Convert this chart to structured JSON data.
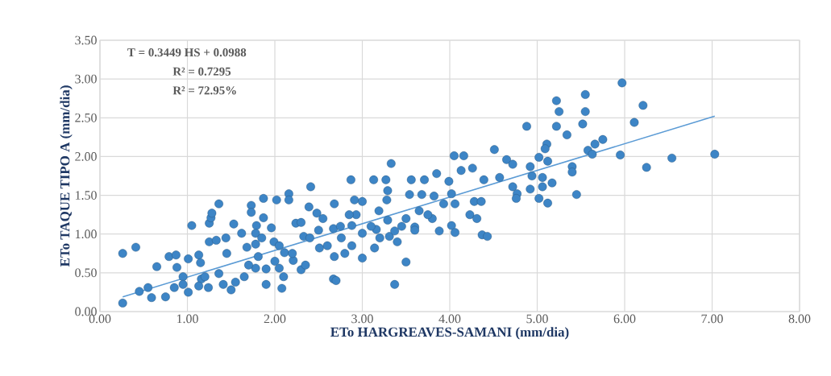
{
  "chart_data": {
    "type": "scatter",
    "xlabel": "ETo HARGREAVES-SAMANI (mm/dia)",
    "ylabel": "ETo TAQUE TIPO A (mm/dia)",
    "annotations": [
      "T = 0.3449 HS + 0.0988",
      "R² = 0.7295",
      "R² = 72.95%"
    ],
    "xlim": [
      0,
      8
    ],
    "ylim": [
      0,
      3.5
    ],
    "xticks": [
      {
        "value": 0,
        "label": "0.00"
      },
      {
        "value": 1,
        "label": "1.00"
      },
      {
        "value": 2,
        "label": "2.00"
      },
      {
        "value": 3,
        "label": "3.00"
      },
      {
        "value": 4,
        "label": "4.00"
      },
      {
        "value": 5,
        "label": "5.00"
      },
      {
        "value": 6,
        "label": "6.00"
      },
      {
        "value": 7,
        "label": "7.00"
      },
      {
        "value": 8,
        "label": "8.00"
      }
    ],
    "yticks": [
      {
        "value": 0,
        "label": "0.00"
      },
      {
        "value": 0.5,
        "label": "0.50"
      },
      {
        "value": 1,
        "label": "1.00"
      },
      {
        "value": 1.5,
        "label": "1.50"
      },
      {
        "value": 2,
        "label": "2.00"
      },
      {
        "value": 2.5,
        "label": "2.50"
      },
      {
        "value": 3,
        "label": "3.00"
      },
      {
        "value": 3.5,
        "label": "3.50"
      }
    ],
    "grid": true,
    "marker": "circle",
    "series": [
      {
        "color": "#3d85c6",
        "x": [
          0.26,
          0.41,
          0.26,
          0.65,
          0.45,
          0.55,
          0.59,
          0.75,
          0.79,
          0.87,
          0.88,
          1.01,
          0.95,
          0.85,
          1.01,
          1.05,
          1.13,
          1.15,
          1.16,
          1.13,
          1.24,
          1.25,
          1.25,
          1.27,
          1.28,
          1.36,
          1.33,
          1.44,
          1.45,
          1.36,
          1.41,
          1.5,
          1.53,
          1.62,
          1.73,
          1.73,
          1.68,
          1.65,
          1.78,
          1.79,
          1.78,
          1.87,
          1.87,
          1.78,
          1.81,
          1.9,
          2.02,
          1.96,
          2.08,
          2.05,
          2.16,
          2.16,
          1.99,
          2.24,
          2.21,
          2.11,
          2.41,
          2.39,
          2.48,
          2.33,
          2.51,
          2.3,
          2.68,
          2.67,
          2.67,
          2.7,
          2.87,
          2.91,
          3.0,
          2.93,
          2.88,
          3.0,
          2.76,
          2.68,
          2.88,
          3.0,
          3.13,
          3.27,
          3.33,
          3.29,
          3.28,
          3.19,
          3.16,
          3.14,
          3.31,
          3.37,
          3.29,
          3.5,
          3.37,
          3.5,
          3.56,
          3.54,
          3.68,
          3.71,
          3.65,
          3.6,
          3.8,
          3.85,
          3.82,
          3.99,
          3.93,
          4.02,
          4.06,
          3.88,
          4.02,
          4.06,
          4.05,
          4.16,
          4.13,
          4.26,
          4.23,
          4.31,
          4.28,
          4.36,
          4.39,
          4.37,
          4.43,
          4.51,
          4.57,
          4.65,
          4.72,
          4.72,
          4.77,
          4.76,
          4.88,
          4.92,
          4.94,
          4.92,
          5.02,
          5.11,
          5.09,
          5.12,
          5.06,
          5.06,
          5.02,
          5.12,
          5.17,
          5.22,
          5.25,
          5.22,
          5.34,
          5.55,
          5.55,
          5.52,
          5.97,
          6.21,
          6.11,
          5.75,
          5.66,
          5.58,
          5.63,
          5.95,
          6.25,
          6.54,
          7.03,
          5.4,
          5.4,
          5.45,
          2.4,
          2.5,
          2.6,
          2.2,
          2.0,
          1.9,
          1.7,
          2.3,
          2.55,
          2.75,
          2.85,
          3.1,
          3.2,
          3.4,
          3.45,
          3.6,
          3.75,
          2.1,
          2.35,
          2.8,
          1.55,
          1.2,
          0.95,
          1.85,
          2.05
        ],
        "values": [
          0.75,
          0.83,
          0.11,
          0.58,
          0.26,
          0.31,
          0.18,
          0.19,
          0.71,
          0.73,
          0.57,
          0.68,
          0.45,
          0.31,
          0.25,
          1.11,
          0.73,
          0.63,
          0.42,
          0.33,
          0.31,
          0.9,
          1.14,
          1.21,
          1.27,
          1.39,
          0.92,
          0.95,
          0.75,
          0.49,
          0.35,
          0.28,
          1.13,
          1.01,
          1.37,
          1.28,
          0.83,
          0.45,
          0.56,
          1.11,
          1.01,
          1.46,
          1.21,
          0.87,
          0.71,
          0.35,
          1.44,
          1.08,
          0.3,
          0.56,
          1.52,
          1.44,
          0.9,
          1.14,
          0.66,
          0.76,
          1.61,
          1.35,
          1.27,
          0.97,
          0.82,
          0.54,
          1.39,
          0.42,
          1.07,
          0.4,
          1.7,
          1.44,
          1.42,
          1.25,
          1.11,
          1.01,
          0.95,
          0.71,
          0.85,
          0.69,
          1.7,
          1.7,
          1.91,
          1.56,
          1.44,
          1.3,
          1.06,
          0.82,
          0.97,
          1.04,
          1.18,
          1.2,
          0.35,
          0.64,
          1.7,
          1.51,
          1.51,
          1.7,
          1.3,
          1.09,
          1.2,
          1.78,
          1.49,
          1.68,
          1.39,
          1.52,
          1.39,
          1.04,
          1.11,
          1.02,
          2.01,
          2.01,
          1.82,
          1.85,
          1.25,
          1.2,
          1.42,
          1.42,
          1.7,
          0.99,
          0.97,
          2.09,
          1.73,
          1.96,
          1.9,
          1.61,
          1.52,
          1.46,
          2.39,
          1.87,
          1.75,
          1.58,
          1.99,
          2.16,
          2.1,
          1.94,
          1.73,
          1.61,
          1.46,
          1.4,
          1.66,
          2.72,
          2.58,
          2.39,
          2.28,
          2.8,
          2.58,
          2.42,
          2.95,
          2.66,
          2.44,
          2.22,
          2.16,
          2.08,
          2.03,
          2.02,
          1.86,
          1.98,
          2.03,
          1.87,
          1.8,
          1.51,
          0.95,
          1.05,
          0.85,
          0.75,
          0.65,
          0.55,
          0.6,
          1.15,
          1.2,
          1.1,
          1.25,
          1.1,
          0.95,
          0.9,
          1.1,
          1.05,
          1.25,
          0.45,
          0.6,
          0.75,
          0.38,
          0.45,
          0.35,
          0.95,
          0.85
        ]
      },
      {
        "type": "line",
        "marker": "none",
        "color": "#5b9bd5",
        "x": [
          0.26,
          7.03
        ],
        "values": [
          0.19,
          2.52
        ]
      }
    ]
  }
}
